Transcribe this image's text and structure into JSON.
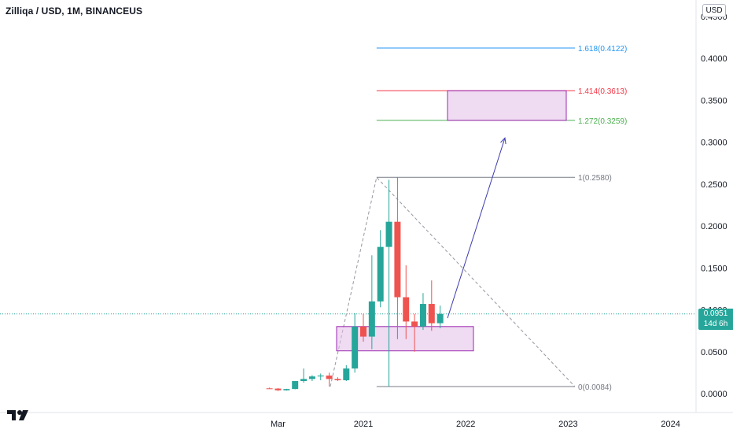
{
  "header": {
    "title": "Zilliqa / USD, 1M, BINANCEUS",
    "currency": "USD"
  },
  "price_tag": {
    "price": "0.0951",
    "countdown": "14d 6h"
  },
  "colors": {
    "up": "#26a69a",
    "down": "#ef5350",
    "fib_1618": "#2196f3",
    "fib_1414": "#f23645",
    "fib_1272": "#4caf50",
    "fib_base": "#787b86",
    "zone_border": "#9c27b0",
    "zone_fill": "#e1bee7",
    "arrow": "#3c3caf"
  },
  "chart_data": {
    "type": "candlestick",
    "title": "Zilliqa / USD, 1M, BINANCEUS",
    "interval": "1M",
    "yaxis": {
      "ticks": [
        "0.0000",
        "0.0500",
        "0.1000",
        "0.1500",
        "0.2000",
        "0.2500",
        "0.3000",
        "0.3500",
        "0.4000",
        "0.4500"
      ],
      "ylim": [
        0,
        0.45
      ]
    },
    "xaxis": {
      "ticks": [
        "Mar",
        "2021",
        "2022",
        "2023",
        "2024"
      ]
    },
    "candles": [
      {
        "date": "2020-02",
        "open": 0.0063,
        "high": 0.0072,
        "low": 0.0056,
        "close": 0.006
      },
      {
        "date": "2020-03",
        "open": 0.006,
        "high": 0.0066,
        "low": 0.0032,
        "close": 0.004
      },
      {
        "date": "2020-04",
        "open": 0.004,
        "high": 0.0058,
        "low": 0.0036,
        "close": 0.0055
      },
      {
        "date": "2020-05",
        "open": 0.0055,
        "high": 0.015,
        "low": 0.0052,
        "close": 0.015
      },
      {
        "date": "2020-06",
        "open": 0.015,
        "high": 0.03,
        "low": 0.013,
        "close": 0.0175
      },
      {
        "date": "2020-07",
        "open": 0.0175,
        "high": 0.022,
        "low": 0.015,
        "close": 0.0205
      },
      {
        "date": "2020-08",
        "open": 0.0205,
        "high": 0.024,
        "low": 0.016,
        "close": 0.0215
      },
      {
        "date": "2020-09",
        "open": 0.0215,
        "high": 0.025,
        "low": 0.0084,
        "close": 0.0175
      },
      {
        "date": "2020-10",
        "open": 0.0175,
        "high": 0.0195,
        "low": 0.015,
        "close": 0.016
      },
      {
        "date": "2020-11",
        "open": 0.016,
        "high": 0.034,
        "low": 0.015,
        "close": 0.03
      },
      {
        "date": "2020-12",
        "open": 0.03,
        "high": 0.096,
        "low": 0.025,
        "close": 0.08
      },
      {
        "date": "2021-01",
        "open": 0.08,
        "high": 0.095,
        "low": 0.062,
        "close": 0.068
      },
      {
        "date": "2021-02",
        "open": 0.068,
        "high": 0.165,
        "low": 0.053,
        "close": 0.11
      },
      {
        "date": "2021-03",
        "open": 0.11,
        "high": 0.195,
        "low": 0.103,
        "close": 0.175
      },
      {
        "date": "2021-04",
        "open": 0.175,
        "high": 0.255,
        "low": 0.0084,
        "close": 0.205
      },
      {
        "date": "2021-05",
        "open": 0.205,
        "high": 0.258,
        "low": 0.065,
        "close": 0.115
      },
      {
        "date": "2021-06",
        "open": 0.115,
        "high": 0.153,
        "low": 0.065,
        "close": 0.086
      },
      {
        "date": "2021-07",
        "open": 0.086,
        "high": 0.095,
        "low": 0.05,
        "close": 0.08
      },
      {
        "date": "2021-08",
        "open": 0.08,
        "high": 0.12,
        "low": 0.076,
        "close": 0.107
      },
      {
        "date": "2021-09",
        "open": 0.107,
        "high": 0.135,
        "low": 0.075,
        "close": 0.084
      },
      {
        "date": "2021-10",
        "open": 0.084,
        "high": 0.105,
        "low": 0.078,
        "close": 0.0951
      }
    ],
    "fibonacci": [
      {
        "label": "1.618(0.4122)",
        "value": 0.4122,
        "color": "#2196f3"
      },
      {
        "label": "1.414(0.3613)",
        "value": 0.3613,
        "color": "#f23645"
      },
      {
        "label": "1.272(0.3259)",
        "value": 0.3259,
        "color": "#4caf50"
      },
      {
        "label": "1(0.2580)",
        "value": 0.258,
        "color": "#787b86"
      },
      {
        "label": "0(0.0084)",
        "value": 0.0084,
        "color": "#787b86"
      }
    ],
    "zones": [
      {
        "name": "support-zone",
        "from_date": "2020-12",
        "to_date": "2021-12",
        "low": 0.051,
        "high": 0.08
      },
      {
        "name": "target-zone",
        "from_date": "2021-11",
        "to_date": "2022-11",
        "low": 0.3259,
        "high": 0.3613
      }
    ],
    "current_price": 0.0951
  }
}
